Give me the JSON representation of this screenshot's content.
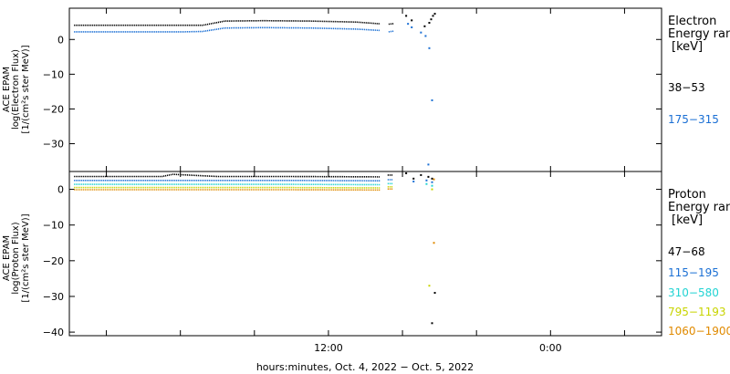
{
  "chart_data": [
    {
      "type": "scatter",
      "panel": "electron",
      "ylabel_lines": [
        "ACE EPAM",
        "log(Electron Flux)",
        "[1/(cm²s ster MeV)]"
      ],
      "ylim": [
        -38,
        9
      ],
      "yticks": [
        0,
        -10,
        -20,
        -30
      ],
      "ytick_labels": [
        "0",
        "−10",
        "−20",
        "−30"
      ],
      "legend_title": [
        "Electron",
        "Energy ranges",
        "[keV]"
      ],
      "series": [
        {
          "name": "38−53",
          "color": "#000000",
          "segments": [
            {
              "x": [
                -13.75,
                -10.5,
                -7.8,
                -6.8,
                -5.6,
                -3.5,
                -1.0,
                1.5,
                2.8
              ],
              "y": [
                4.1,
                4.1,
                4.1,
                4.1,
                5.3,
                5.4,
                5.3,
                5.0,
                4.5
              ]
            },
            {
              "x": [
                3.25,
                3.55
              ],
              "y": [
                4.4,
                4.6
              ]
            }
          ],
          "points": [
            {
              "x": 4.2,
              "y": 6.8
            },
            {
              "x": 4.5,
              "y": 5.5
            },
            {
              "x": 5.2,
              "y": 3.8
            },
            {
              "x": 5.45,
              "y": 4.8
            },
            {
              "x": 5.55,
              "y": 5.8
            },
            {
              "x": 5.65,
              "y": 6.8
            },
            {
              "x": 5.75,
              "y": 7.4
            }
          ]
        },
        {
          "name": "175−315",
          "color": "#1a6fd4",
          "segments": [
            {
              "x": [
                -13.75,
                -10.5,
                -7.8,
                -6.8,
                -5.6,
                -3.5,
                -1.0,
                1.5,
                2.8
              ],
              "y": [
                2.2,
                2.2,
                2.2,
                2.3,
                3.3,
                3.4,
                3.3,
                3.0,
                2.6
              ]
            },
            {
              "x": [
                3.25,
                3.55
              ],
              "y": [
                2.2,
                2.4
              ]
            }
          ],
          "points": [
            {
              "x": 4.3,
              "y": 4.5
            },
            {
              "x": 4.5,
              "y": 3.5
            },
            {
              "x": 5.0,
              "y": 2.0
            },
            {
              "x": 5.25,
              "y": 1.0
            },
            {
              "x": 5.45,
              "y": -2.5
            },
            {
              "x": 5.6,
              "y": -17.5
            },
            {
              "x": 5.4,
              "y": -36.0
            }
          ]
        }
      ]
    },
    {
      "type": "scatter",
      "panel": "proton",
      "ylabel_lines": [
        "ACE EPAM",
        "log(Proton Flux)",
        "[1/(cm²s ster MeV)]"
      ],
      "ylim": [
        -41,
        5
      ],
      "yticks": [
        0,
        -10,
        -20,
        -30,
        -40
      ],
      "ytick_labels": [
        "0",
        "−10",
        "−20",
        "−30",
        "−40"
      ],
      "legend_title": [
        "Proton",
        "Energy ranges",
        "[keV]"
      ],
      "series": [
        {
          "name": "47−68",
          "color": "#000000",
          "segments": [
            {
              "x": [
                -13.75,
                -10,
                -9.0,
                -8.4,
                -6.0,
                -2.0,
                2.8
              ],
              "y": [
                3.6,
                3.6,
                3.6,
                4.2,
                3.6,
                3.6,
                3.5
              ]
            },
            {
              "x": [
                3.2,
                3.5
              ],
              "y": [
                4.0,
                4.0
              ]
            }
          ],
          "points": [
            {
              "x": 4.2,
              "y": 4.5
            },
            {
              "x": 4.6,
              "y": 3.0
            },
            {
              "x": 5.0,
              "y": 4.0
            },
            {
              "x": 5.4,
              "y": 3.5
            },
            {
              "x": 5.6,
              "y": 3.0
            },
            {
              "x": 5.75,
              "y": -29.0
            },
            {
              "x": 5.6,
              "y": -37.5
            }
          ]
        },
        {
          "name": "115−195",
          "color": "#1a6fd4",
          "segments": [
            {
              "x": [
                -13.75,
                -8.0,
                -2.0,
                2.8
              ],
              "y": [
                2.5,
                2.5,
                2.5,
                2.4
              ]
            },
            {
              "x": [
                3.2,
                3.5
              ],
              "y": [
                2.7,
                2.7
              ]
            }
          ],
          "points": [
            {
              "x": 4.6,
              "y": 2.2
            },
            {
              "x": 5.3,
              "y": 2.5
            },
            {
              "x": 5.6,
              "y": 2.0
            }
          ]
        },
        {
          "name": "310−580",
          "color": "#22d3d3",
          "segments": [
            {
              "x": [
                -13.75,
                -8.0,
                -2.0,
                2.8
              ],
              "y": [
                1.4,
                1.4,
                1.4,
                1.3
              ]
            },
            {
              "x": [
                3.2,
                3.5
              ],
              "y": [
                1.6,
                1.6
              ]
            }
          ],
          "points": [
            {
              "x": 5.3,
              "y": 1.5
            },
            {
              "x": 5.6,
              "y": 1.0
            }
          ]
        },
        {
          "name": "795−1193",
          "color": "#c8d400",
          "segments": [
            {
              "x": [
                -13.75,
                -8.0,
                -2.0,
                2.8
              ],
              "y": [
                0.5,
                0.5,
                0.5,
                0.4
              ]
            },
            {
              "x": [
                3.2,
                3.5
              ],
              "y": [
                0.7,
                0.7
              ]
            }
          ],
          "points": [
            {
              "x": 5.6,
              "y": 0.0
            },
            {
              "x": 5.45,
              "y": -27.0
            }
          ]
        },
        {
          "name": "1060−1900",
          "color": "#e08a00",
          "segments": [
            {
              "x": [
                -13.75,
                -8.0,
                -2.0,
                2.8
              ],
              "y": [
                -0.1,
                -0.1,
                -0.1,
                -0.2
              ]
            },
            {
              "x": [
                3.2,
                3.5
              ],
              "y": [
                0.1,
                0.1
              ]
            }
          ],
          "points": [
            {
              "x": 5.7,
              "y": 2.8
            },
            {
              "x": 5.7,
              "y": -15.0
            }
          ]
        }
      ]
    }
  ],
  "x_axis": {
    "xlim": [
      -14,
      18
    ],
    "ticks": [
      -12,
      -8,
      -4,
      0,
      4,
      8,
      12,
      16
    ],
    "labeled_ticks": [
      {
        "x": 0,
        "label": "12:00"
      },
      {
        "x": 12,
        "label": "0:00"
      }
    ],
    "xlabel": "hours:minutes, Oct.  4, 2022 − Oct.  5, 2022"
  },
  "colors": {
    "axes": "#000000",
    "background": "#ffffff"
  }
}
